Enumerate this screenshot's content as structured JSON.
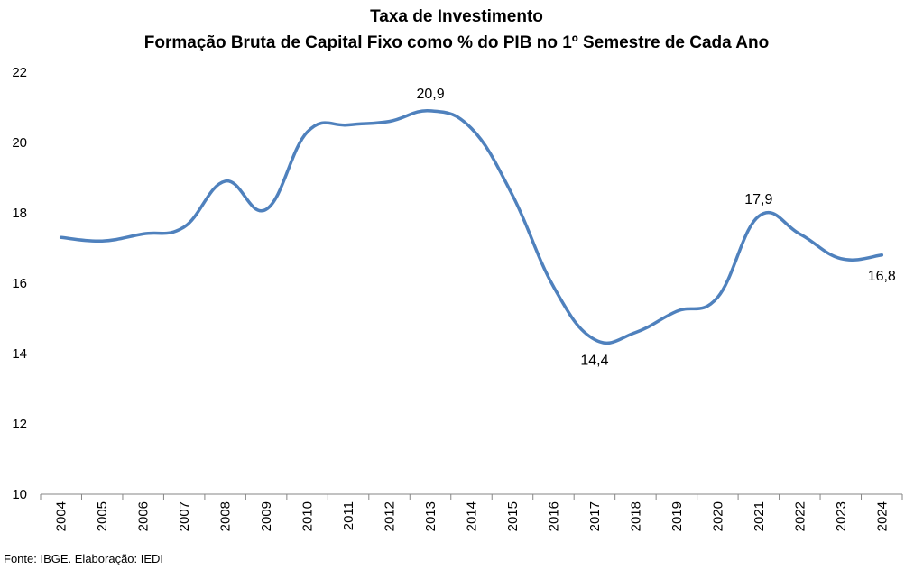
{
  "chart_data": {
    "type": "line",
    "title": "Taxa de Investimento",
    "subtitle": "Formação Bruta de Capital Fixo como % do PIB no 1º Semestre de Cada Ano",
    "xlabel": "",
    "ylabel": "",
    "ylim": [
      10,
      22
    ],
    "yticks": [
      "10",
      "12",
      "14",
      "16",
      "18",
      "20",
      "22"
    ],
    "categories": [
      "2004",
      "2005",
      "2006",
      "2007",
      "2008",
      "2009",
      "2010",
      "2011",
      "2012",
      "2013",
      "2014",
      "2015",
      "2016",
      "2017",
      "2018",
      "2019",
      "2020",
      "2021",
      "2022",
      "2023",
      "2024"
    ],
    "series": [
      {
        "name": "",
        "color": "#4F81BD",
        "values": [
          17.3,
          17.2,
          17.4,
          17.6,
          18.9,
          18.1,
          20.3,
          20.5,
          20.6,
          20.9,
          20.4,
          18.5,
          15.9,
          14.4,
          14.6,
          15.2,
          15.6,
          17.9,
          17.4,
          16.7,
          16.8
        ]
      }
    ],
    "data_labels": [
      {
        "category": "2013",
        "text": "20,9",
        "position": "above"
      },
      {
        "category": "2017",
        "text": "14,4",
        "position": "below"
      },
      {
        "category": "2021",
        "text": "17,9",
        "position": "above"
      },
      {
        "category": "2024",
        "text": "16,8",
        "position": "below"
      }
    ],
    "grid": false,
    "legend": "none"
  },
  "source": "Fonte: IBGE. Elaboração: IEDI"
}
